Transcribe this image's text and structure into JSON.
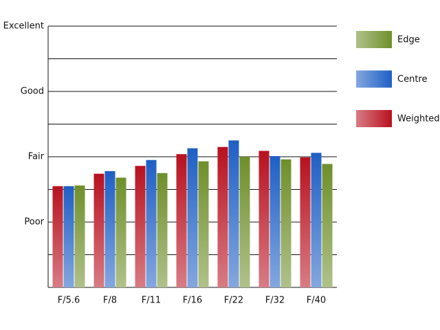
{
  "chart_data": {
    "type": "bar",
    "categories": [
      "F/5.6",
      "F/8",
      "F/11",
      "F/16",
      "F/22",
      "F/32",
      "F/40"
    ],
    "series": [
      {
        "name": "Weighted",
        "color": "#b8111f",
        "values": [
          1.55,
          1.74,
          1.86,
          2.04,
          2.15,
          2.09,
          1.99
        ]
      },
      {
        "name": "Centre",
        "color": "#1f5fc4",
        "values": [
          1.55,
          1.78,
          1.95,
          2.13,
          2.25,
          2.01,
          2.06
        ]
      },
      {
        "name": "Edge",
        "color": "#6f8f2a",
        "values": [
          1.56,
          1.68,
          1.75,
          1.93,
          2.0,
          1.96,
          1.89
        ]
      }
    ],
    "ylim": [
      0,
      4
    ],
    "yticks": [
      {
        "value": 1,
        "label": "Poor"
      },
      {
        "value": 2,
        "label": "Fair"
      },
      {
        "value": 3,
        "label": "Good"
      },
      {
        "value": 4,
        "label": "Excellent"
      }
    ],
    "minor_yticks": [
      0.5,
      1.5,
      2.5,
      3.5
    ],
    "grid": true
  }
}
